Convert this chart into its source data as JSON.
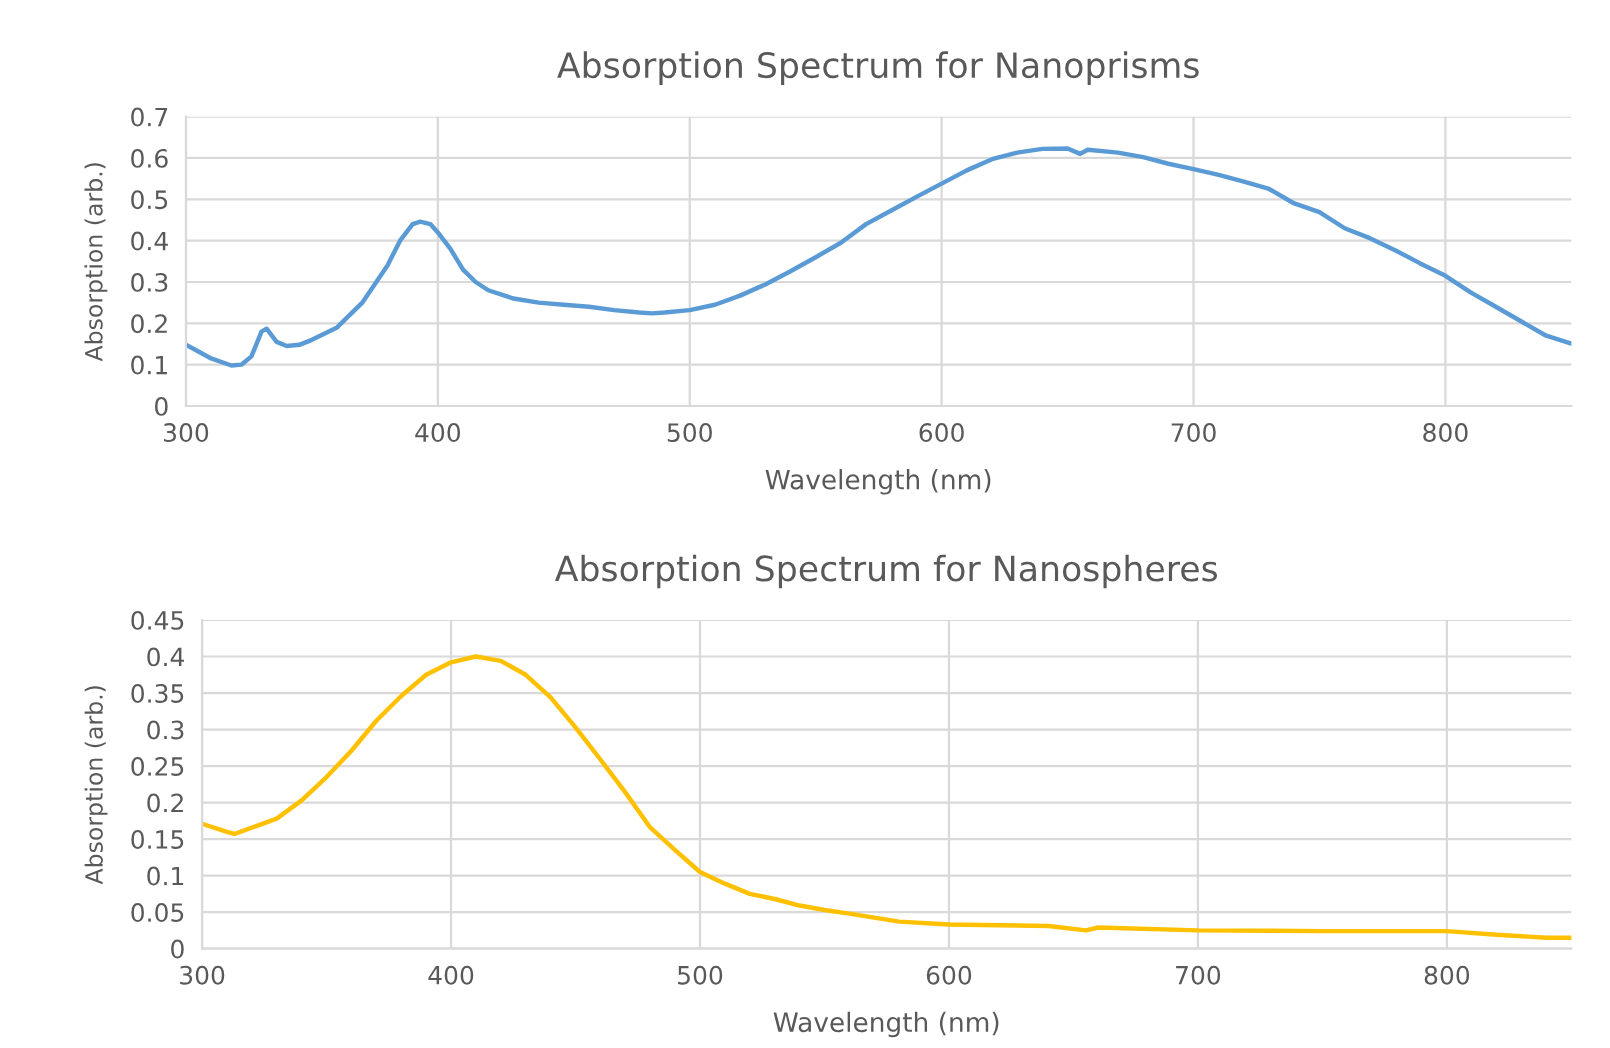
{
  "chart_data": [
    {
      "type": "line",
      "title": "Absorption Spectrum for Nanoprisms",
      "xlabel": "Wavelength (nm)",
      "ylabel": "Absorption (arb.)",
      "x": [
        300,
        310,
        318,
        322,
        326,
        330,
        332,
        336,
        340,
        345,
        350,
        360,
        370,
        380,
        385,
        390,
        393,
        397,
        400,
        405,
        410,
        415,
        420,
        430,
        440,
        450,
        460,
        470,
        480,
        485,
        490,
        500,
        510,
        520,
        530,
        540,
        550,
        560,
        570,
        580,
        590,
        600,
        610,
        620,
        630,
        640,
        650,
        655,
        658,
        670,
        680,
        690,
        700,
        710,
        720,
        730,
        740,
        750,
        760,
        770,
        780,
        790,
        800,
        810,
        820,
        830,
        840,
        850
      ],
      "series": [
        {
          "color": "#5b9bd5",
          "values": [
            0.148,
            0.115,
            0.098,
            0.1,
            0.12,
            0.18,
            0.187,
            0.155,
            0.145,
            0.148,
            0.16,
            0.19,
            0.25,
            0.34,
            0.4,
            0.44,
            0.446,
            0.44,
            0.42,
            0.38,
            0.33,
            0.3,
            0.28,
            0.26,
            0.25,
            0.245,
            0.24,
            0.232,
            0.226,
            0.224,
            0.226,
            0.232,
            0.245,
            0.267,
            0.294,
            0.326,
            0.36,
            0.395,
            0.44,
            0.473,
            0.506,
            0.538,
            0.57,
            0.597,
            0.613,
            0.622,
            0.623,
            0.61,
            0.62,
            0.613,
            0.602,
            0.586,
            0.573,
            0.559,
            0.543,
            0.525,
            0.49,
            0.469,
            0.43,
            0.406,
            0.377,
            0.345,
            0.315,
            0.275,
            0.24,
            0.205,
            0.17,
            0.151
          ]
        }
      ],
      "xlim": [
        300,
        850
      ],
      "ylim": [
        0,
        0.7
      ],
      "xticks": [
        300,
        400,
        500,
        600,
        700,
        800
      ],
      "yticks": [
        0,
        0.1,
        0.2,
        0.3,
        0.4,
        0.5,
        0.6,
        0.7
      ],
      "grid": true
    },
    {
      "type": "line",
      "title": "Absorption Spectrum for Nanospheres",
      "xlabel": "Wavelength (nm)",
      "ylabel": "Absorption (arb.)",
      "x": [
        300,
        310,
        313,
        330,
        340,
        350,
        360,
        370,
        380,
        390,
        400,
        410,
        420,
        430,
        440,
        450,
        460,
        470,
        480,
        490,
        500,
        510,
        520,
        530,
        540,
        550,
        560,
        580,
        600,
        620,
        640,
        655,
        660,
        700,
        750,
        800,
        820,
        840,
        850
      ],
      "series": [
        {
          "color": "#ffc000",
          "values": [
            0.171,
            0.16,
            0.157,
            0.178,
            0.203,
            0.235,
            0.271,
            0.312,
            0.346,
            0.375,
            0.392,
            0.4,
            0.394,
            0.375,
            0.344,
            0.303,
            0.259,
            0.214,
            0.166,
            0.135,
            0.105,
            0.089,
            0.075,
            0.068,
            0.059,
            0.053,
            0.048,
            0.037,
            0.033,
            0.032,
            0.031,
            0.025,
            0.029,
            0.025,
            0.024,
            0.024,
            0.019,
            0.015,
            0.015
          ]
        }
      ],
      "xlim": [
        300,
        850
      ],
      "ylim": [
        0,
        0.45
      ],
      "xticks": [
        300,
        400,
        500,
        600,
        700,
        800
      ],
      "yticks": [
        0,
        0.05,
        0.1,
        0.15,
        0.2,
        0.25,
        0.3,
        0.35,
        0.4,
        0.45
      ],
      "grid": true
    }
  ]
}
